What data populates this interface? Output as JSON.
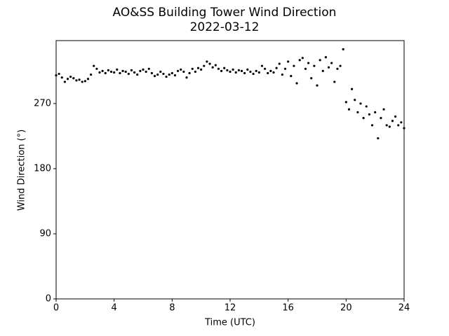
{
  "chart_data": {
    "type": "scatter",
    "title": "AO&SS Building Tower Wind Direction",
    "subtitle": "2022-03-12",
    "x_label": "Time (UTC)",
    "y_label": "Wind Direction (°)",
    "color": "#000000",
    "xlim": [
      0,
      24
    ],
    "xticks": [
      0,
      4,
      8,
      12,
      16,
      20,
      24
    ],
    "ylim": [
      0,
      357
    ],
    "yticks": [
      0,
      90,
      180,
      270
    ],
    "x": [
      0,
      0.2,
      0.4,
      0.6,
      0.8,
      1,
      1.2,
      1.4,
      1.6,
      1.8,
      2,
      2.2,
      2.4,
      2.6,
      2.8,
      3,
      3.2,
      3.4,
      3.6,
      3.8,
      4,
      4.2,
      4.4,
      4.6,
      4.8,
      5,
      5.2,
      5.4,
      5.6,
      5.8,
      6,
      6.2,
      6.4,
      6.6,
      6.8,
      7,
      7.2,
      7.4,
      7.6,
      7.8,
      8,
      8.2,
      8.4,
      8.6,
      8.8,
      9,
      9.2,
      9.4,
      9.6,
      9.8,
      10,
      10.2,
      10.4,
      10.6,
      10.8,
      11,
      11.2,
      11.4,
      11.6,
      11.8,
      12,
      12.2,
      12.4,
      12.6,
      12.8,
      13,
      13.2,
      13.4,
      13.6,
      13.8,
      14,
      14.2,
      14.4,
      14.6,
      14.8,
      15,
      15.2,
      15.4,
      15.6,
      15.8,
      16,
      16.2,
      16.4,
      16.6,
      16.8,
      17,
      17.2,
      17.4,
      17.6,
      17.8,
      18,
      18.2,
      18.4,
      18.6,
      18.8,
      19,
      19.2,
      19.4,
      19.6,
      19.8,
      20,
      20.2,
      20.4,
      20.6,
      20.8,
      21,
      21.2,
      21.4,
      21.6,
      21.8,
      22,
      22.2,
      22.4,
      22.6,
      22.8,
      23,
      23.2,
      23.4,
      23.6,
      23.8,
      24
    ],
    "values": [
      309,
      311,
      306,
      300,
      304,
      307,
      305,
      302,
      303,
      300,
      301,
      304,
      310,
      322,
      318,
      313,
      315,
      312,
      316,
      314,
      313,
      317,
      312,
      315,
      314,
      311,
      316,
      313,
      310,
      315,
      317,
      314,
      318,
      312,
      308,
      310,
      314,
      311,
      307,
      310,
      312,
      309,
      315,
      317,
      314,
      306,
      312,
      318,
      314,
      319,
      317,
      322,
      328,
      325,
      320,
      323,
      318,
      315,
      319,
      316,
      314,
      317,
      313,
      316,
      315,
      312,
      317,
      314,
      311,
      315,
      313,
      322,
      318,
      312,
      315,
      313,
      319,
      325,
      310,
      318,
      328,
      308,
      322,
      298,
      330,
      333,
      318,
      326,
      305,
      322,
      295,
      330,
      315,
      334,
      320,
      326,
      300,
      318,
      322,
      345,
      272,
      262,
      290,
      275,
      258,
      270,
      250,
      266,
      255,
      240,
      258,
      222,
      250,
      262,
      240,
      238,
      246,
      252,
      240,
      244,
      236
    ]
  }
}
